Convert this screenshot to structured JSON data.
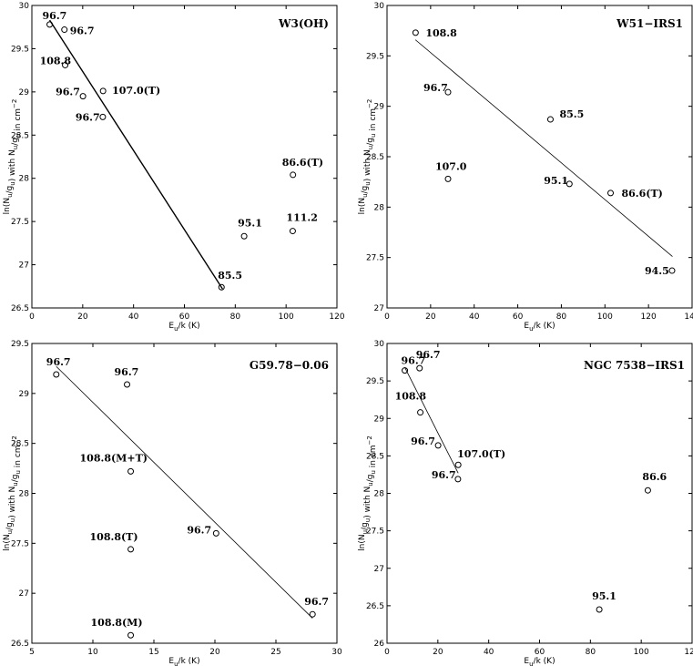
{
  "chart_data": [
    {
      "type": "scatter",
      "title": "W3(OH)",
      "xlabel": "E_u/k (K)",
      "ylabel": "ln(N_u/g_u) with N_u/g_u in cm^-2",
      "xlim": [
        0,
        120
      ],
      "ylim": [
        26.5,
        30
      ],
      "xticks": [
        0,
        20,
        40,
        60,
        80,
        100,
        120
      ],
      "yticks": [
        26.5,
        27,
        27.5,
        28,
        28.5,
        29,
        29.5,
        30
      ],
      "grid": false,
      "points": [
        {
          "x": 7,
          "y": 29.78,
          "label": "96.7"
        },
        {
          "x": 12.8,
          "y": 29.72,
          "label": "96.7"
        },
        {
          "x": 13.1,
          "y": 29.31,
          "label": "108.8"
        },
        {
          "x": 20.1,
          "y": 28.95,
          "label": "96.7"
        },
        {
          "x": 28,
          "y": 29.01,
          "label": "107.0(T)"
        },
        {
          "x": 27.9,
          "y": 28.71,
          "label": "96.7"
        },
        {
          "x": 74.6,
          "y": 26.74,
          "label": "85.5"
        },
        {
          "x": 83.5,
          "y": 27.33,
          "label": "95.1"
        },
        {
          "x": 102.6,
          "y": 27.39,
          "label": "111.2"
        },
        {
          "x": 102.7,
          "y": 28.04,
          "label": "86.6(T)"
        }
      ],
      "fit_line": {
        "x": [
          7,
          75
        ],
        "y": [
          29.83,
          26.72
        ]
      }
    },
    {
      "type": "scatter",
      "title": "W51−IRS1",
      "xlabel": "E_u/k (K)",
      "ylabel": "ln(N_u/g_u) with N_u/g_u in cm^-2",
      "xlim": [
        0,
        140
      ],
      "ylim": [
        27,
        30
      ],
      "xticks": [
        0,
        20,
        40,
        60,
        80,
        100,
        120,
        140
      ],
      "yticks": [
        27,
        27.5,
        28,
        28.5,
        29,
        29.5,
        30
      ],
      "grid": false,
      "points": [
        {
          "x": 13.1,
          "y": 29.73,
          "label": "108.8"
        },
        {
          "x": 28,
          "y": 29.14,
          "label": "96.7"
        },
        {
          "x": 28,
          "y": 28.28,
          "label": "107.0"
        },
        {
          "x": 75,
          "y": 28.87,
          "label": "85.5"
        },
        {
          "x": 83.7,
          "y": 28.23,
          "label": "95.1"
        },
        {
          "x": 102.6,
          "y": 28.14,
          "label": "86.6(T)"
        },
        {
          "x": 130.8,
          "y": 27.37,
          "label": "94.5"
        }
      ],
      "fit_line": {
        "x": [
          13,
          131
        ],
        "y": [
          29.66,
          27.51
        ]
      }
    },
    {
      "type": "scatter",
      "title": "G59.78−0.06",
      "xlabel": "E_u/k (K)",
      "ylabel": "ln(N_u/g_u) with N_u/g_u in cm^-2",
      "xlim": [
        5,
        30
      ],
      "ylim": [
        26.5,
        29.5
      ],
      "xticks": [
        5,
        10,
        15,
        20,
        25,
        30
      ],
      "yticks": [
        26.5,
        27,
        27.5,
        28,
        28.5,
        29,
        29.5
      ],
      "grid": false,
      "points": [
        {
          "x": 7,
          "y": 29.19,
          "label": "96.7"
        },
        {
          "x": 12.8,
          "y": 29.09,
          "label": "96.7"
        },
        {
          "x": 13.1,
          "y": 28.22,
          "label": "108.8(M+T)"
        },
        {
          "x": 13.1,
          "y": 27.44,
          "label": "108.8(T)"
        },
        {
          "x": 13.1,
          "y": 26.58,
          "label": "108.8(M)"
        },
        {
          "x": 20.1,
          "y": 27.6,
          "label": "96.7"
        },
        {
          "x": 28,
          "y": 26.79,
          "label": "96.7"
        }
      ],
      "fit_line": {
        "x": [
          7,
          28
        ],
        "y": [
          29.27,
          26.75
        ]
      }
    },
    {
      "type": "scatter",
      "title": "NGC 7538−IRS1",
      "xlabel": "E_u/k (K)",
      "ylabel": "ln(N_u/g_u) with N_u/g_u in cm^-2",
      "xlim": [
        0,
        120
      ],
      "ylim": [
        26,
        30
      ],
      "xticks": [
        0,
        20,
        40,
        60,
        80,
        100,
        120
      ],
      "yticks": [
        26,
        26.5,
        27,
        27.5,
        28,
        28.5,
        29,
        29.5,
        30
      ],
      "grid": false,
      "points": [
        {
          "x": 7,
          "y": 29.64,
          "label": "96.7"
        },
        {
          "x": 12.8,
          "y": 29.67,
          "label": "96.7"
        },
        {
          "x": 13.1,
          "y": 29.08,
          "label": "108.8"
        },
        {
          "x": 20.1,
          "y": 28.64,
          "label": "96.7"
        },
        {
          "x": 28,
          "y": 28.38,
          "label": "107.0(T)"
        },
        {
          "x": 27.9,
          "y": 28.19,
          "label": "96.7"
        },
        {
          "x": 83.5,
          "y": 26.45,
          "label": "95.1"
        },
        {
          "x": 102.6,
          "y": 28.04,
          "label": "86.6"
        }
      ],
      "fit_line": {
        "x": [
          7,
          28
        ],
        "y": [
          29.68,
          28.27
        ]
      }
    }
  ]
}
